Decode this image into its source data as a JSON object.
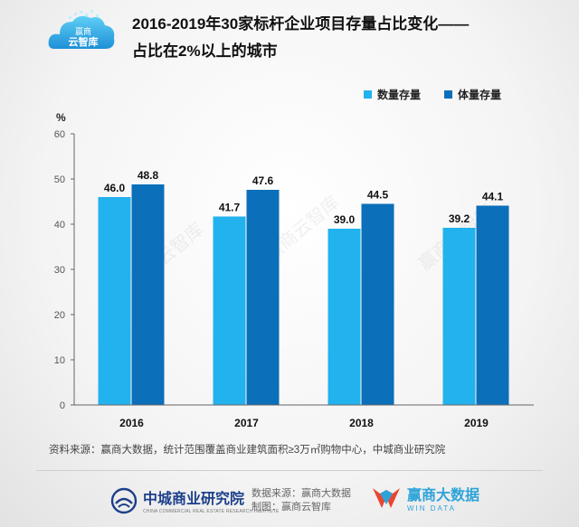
{
  "brand": {
    "logo_line1": "赢商",
    "logo_line2": "云智库"
  },
  "title": {
    "line1": "2016-2019年30家标杆企业项目存量占比变化——",
    "line2": "占比在2%以上的城市"
  },
  "colors": {
    "series_count": "#22b2ee",
    "series_volume": "#0b6fba",
    "axis": "#666666"
  },
  "chart_data": {
    "type": "bar",
    "title": "2016-2019年30家标杆企业项目存量占比变化——占比在2%以上的城市",
    "ylabel": "%",
    "xlabel": "",
    "categories": [
      "2016",
      "2017",
      "2018",
      "2019"
    ],
    "yticks": [
      "0",
      "10",
      "20",
      "30",
      "40",
      "50",
      "60"
    ],
    "ylim": [
      0,
      60
    ],
    "grid": false,
    "legend_position": "top-right",
    "series": [
      {
        "name": "数量存量",
        "values": [
          46.0,
          41.7,
          39.0,
          39.2
        ],
        "labels": [
          "46.0",
          "41.7",
          "39.0",
          "39.2"
        ]
      },
      {
        "name": "体量存量",
        "values": [
          48.8,
          47.6,
          44.5,
          44.1
        ],
        "labels": [
          "48.8",
          "47.6",
          "44.5",
          "44.1"
        ]
      }
    ]
  },
  "source": "资料来源：赢商大数据，统计范围覆盖商业建筑面积≥3万㎡购物中心，中城商业研究院",
  "footer": {
    "org_name": "中城商业研究院",
    "org_sub": "CHINA COMMERCIAL REAL ESTATE RESEARCH INSTITUTE",
    "data_source": "数据来源：赢商大数据",
    "made_by": "制图：赢商云智库",
    "wd_name": "赢商大数据",
    "wd_sub": "WIN DATA"
  },
  "watermark": "赢商云智库"
}
